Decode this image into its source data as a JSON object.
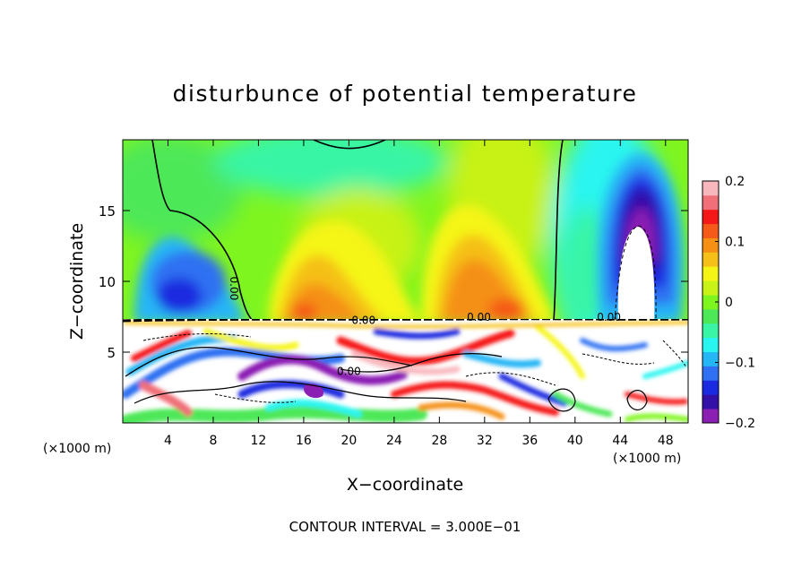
{
  "chart_data": {
    "type": "heatmap",
    "title": "disturbunce of potential temperature",
    "xlabel": "X−coordinate",
    "ylabel": "Z−coordinate",
    "x_unit_left": "(×1000 m)",
    "x_unit_right": "(×1000 m)",
    "footer": "CONTOUR INTERVAL = 3.000E−01",
    "xlim": [
      0,
      50
    ],
    "ylim": [
      0,
      20
    ],
    "x_ticks": [
      4,
      8,
      12,
      16,
      20,
      24,
      28,
      32,
      36,
      40,
      44,
      48
    ],
    "x_tick_labels": [
      "4",
      "8",
      "12",
      "16",
      "20",
      "24",
      "28",
      "32",
      "36",
      "40",
      "44",
      "48"
    ],
    "y_ticks": [
      5,
      10,
      15
    ],
    "y_tick_labels": [
      "5",
      "10",
      "15"
    ],
    "colorbar": {
      "range": [
        -0.2,
        0.2
      ],
      "ticks": [
        -0.2,
        -0.1,
        0,
        0.1,
        0.2
      ],
      "tick_labels": [
        "−0.2",
        "−0.1",
        "0",
        "0.1",
        "0.2"
      ],
      "colors": [
        "#8b1fb4",
        "#3311a8",
        "#1b2ae0",
        "#2f71f2",
        "#25b6f5",
        "#29f5f0",
        "#39f5a5",
        "#4de858",
        "#7ff51f",
        "#c8f218",
        "#f5f515",
        "#f5c017",
        "#f59015",
        "#f55a18",
        "#f51818",
        "#f06f78",
        "#f8b7bd"
      ]
    },
    "contour_labels": [
      {
        "text": "0.00",
        "x": 9.5,
        "y": 9.5,
        "rotation": 90
      },
      {
        "text": "0.00",
        "x": 21.3,
        "y": 7.0,
        "rotation": 0
      },
      {
        "text": "0.00",
        "x": 31.5,
        "y": 7.2,
        "rotation": 0
      },
      {
        "text": "0.00",
        "x": 43.0,
        "y": 7.2,
        "rotation": 0
      },
      {
        "text": "0.00",
        "x": 20.0,
        "y": 3.4,
        "rotation": 0
      }
    ],
    "regions": [
      {
        "desc": "upper background",
        "value": 0.02,
        "x": [
          0,
          50
        ],
        "z": [
          7.3,
          20
        ]
      },
      {
        "desc": "cool tongue left",
        "value": -0.12,
        "x": [
          2,
          10
        ],
        "z": [
          7.3,
          14
        ]
      },
      {
        "desc": "warm plume center-left",
        "value": 0.09,
        "x": [
          12,
          22
        ],
        "z": [
          7.3,
          15
        ]
      },
      {
        "desc": "warm plume center-right",
        "value": 0.11,
        "x": [
          27,
          35
        ],
        "z": [
          7.3,
          16
        ]
      },
      {
        "desc": "cold column right",
        "value": -0.2,
        "x": [
          40,
          48
        ],
        "z": [
          8,
          20
        ]
      },
      {
        "desc": "turbulent boundary layer",
        "value": 0,
        "x": [
          0,
          50
        ],
        "z": [
          0,
          7.3
        ]
      }
    ]
  }
}
